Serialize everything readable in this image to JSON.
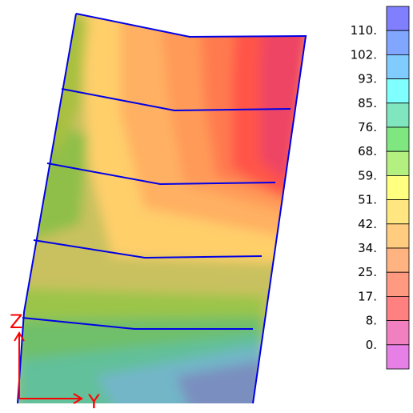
{
  "legend": {
    "labels": [
      "110.",
      "102.",
      "93.",
      "85.",
      "76.",
      "68.",
      "59.",
      "51.",
      "42.",
      "34.",
      "25.",
      "17.",
      "8.",
      "0."
    ],
    "colors": [
      "#8080ff",
      "#80a6ff",
      "#80ccff",
      "#80ffff",
      "#80e6bf",
      "#80e680",
      "#b3f080",
      "#ffff80",
      "#ffe680",
      "#ffcc80",
      "#ffb380",
      "#ff9980",
      "#ff8080",
      "#f080c0",
      "#e680e6"
    ]
  },
  "axes": {
    "vertical": "Z",
    "horizontal": "Y",
    "color": "#ff0000"
  },
  "mesh": {
    "line_color": "#0000e6"
  }
}
